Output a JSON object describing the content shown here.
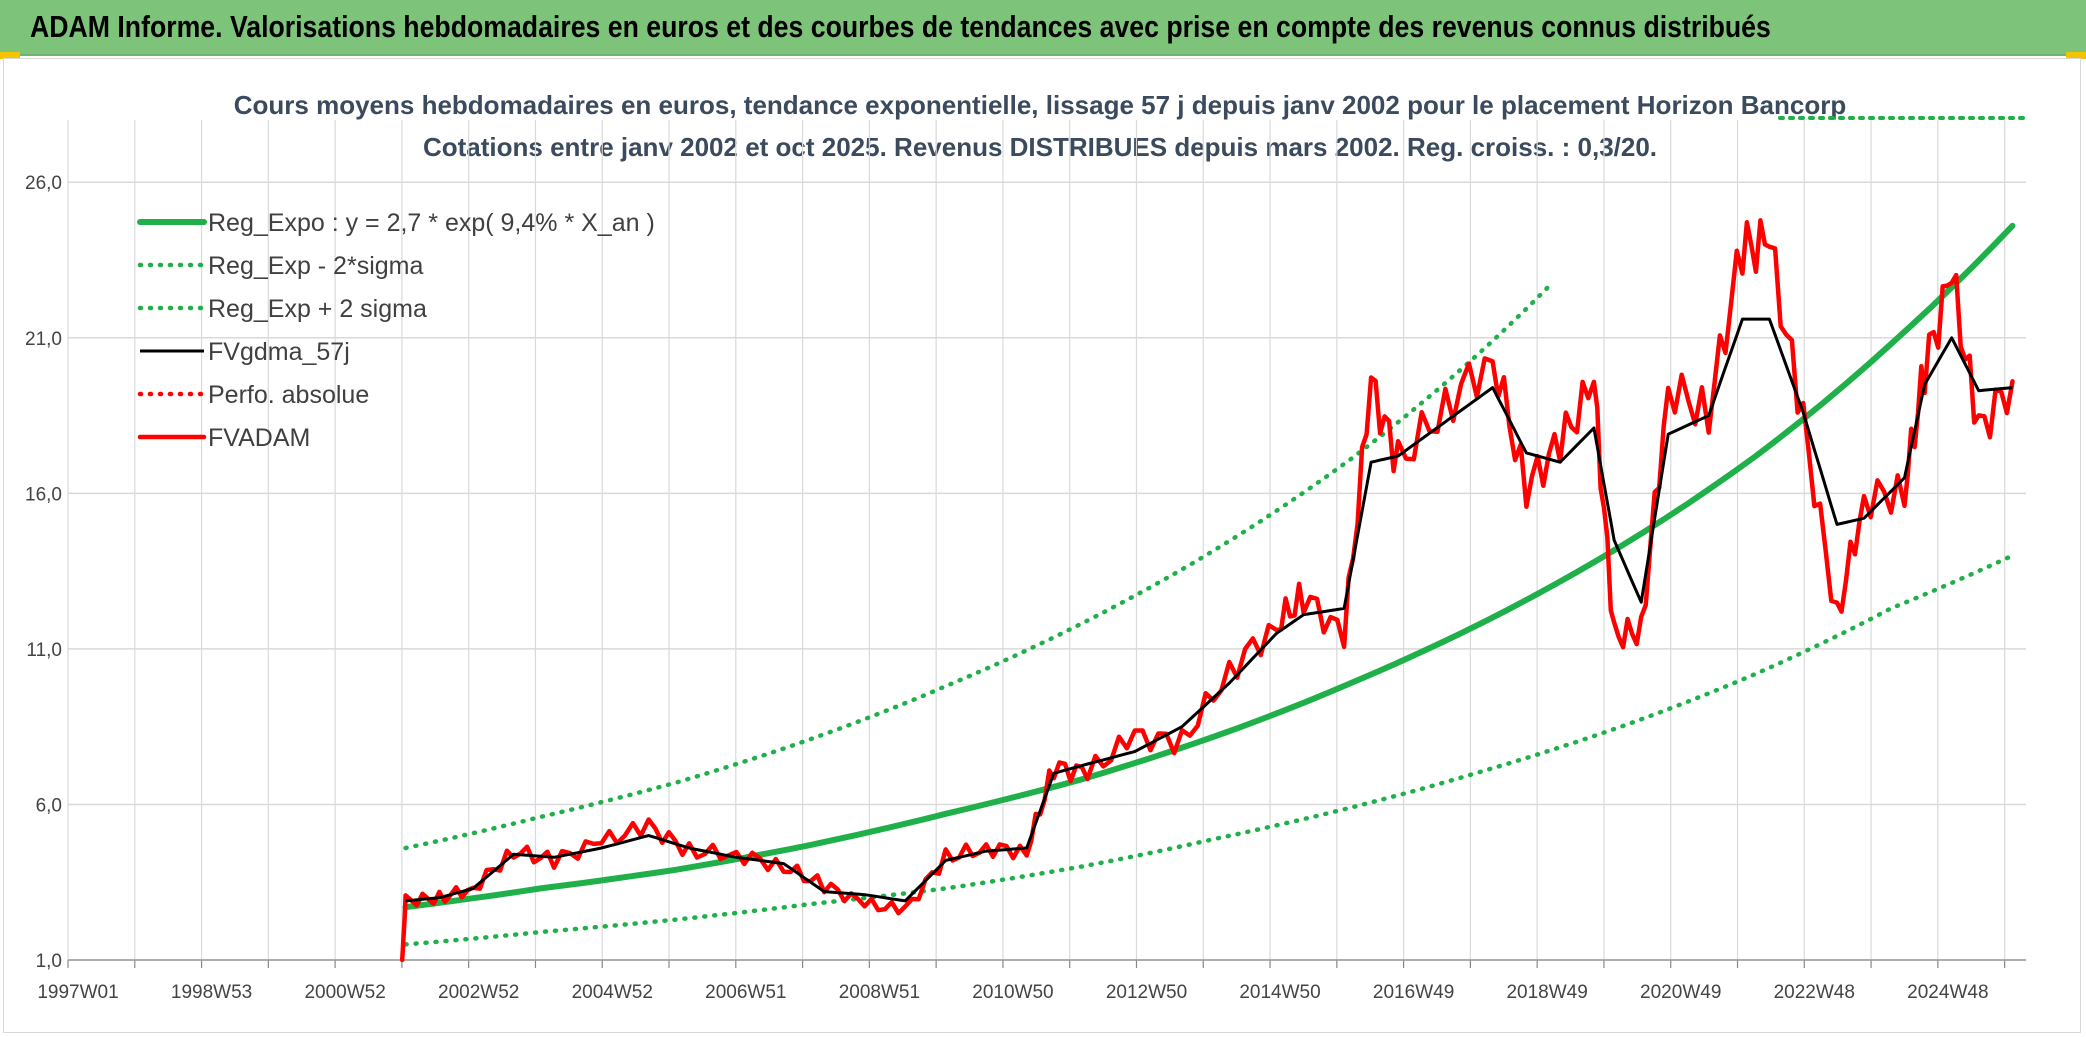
{
  "header": {
    "title": "ADAM Informe. Valorisations hebdomadaires en euros et des courbes de tendances avec prise en compte des revenus connus distribués"
  },
  "colors": {
    "banner": "#7dc47a",
    "green": "#1fb04a",
    "black": "#000000",
    "red": "#ff0000",
    "grid": "#d9d9d9"
  },
  "chart_data": {
    "type": "line",
    "title": "Cours moyens hebdomadaires en euros, tendance exponentielle, lissage 57 j depuis janv 2002 pour le placement Horizon Bancorp",
    "subtitle": "Cotations entre janv 2002 et oct 2025. Revenus DISTRIBUES depuis mars 2002. Reg. croiss. : 0,3/20.",
    "xlabel": "",
    "ylabel": "",
    "x_ticks": [
      "1997W01",
      "1998W53",
      "2000W52",
      "2002W52",
      "2004W52",
      "2006W51",
      "2008W51",
      "2010W50",
      "2012W50",
      "2014W50",
      "2016W49",
      "2018W49",
      "2020W49",
      "2022W48",
      "2024W48"
    ],
    "y_ticks": [
      "1,0",
      "6,0",
      "11,0",
      "16,0",
      "21,0",
      "26,0"
    ],
    "xlim": [
      1997.0,
      2026.0
    ],
    "ylim": [
      1.0,
      28.0
    ],
    "legend_position": "top-left",
    "series": [
      {
        "name": "Reg_Expo : y = 2,7 * exp( 9,4% *  X_an )",
        "style": "solid-thick",
        "color": "#1fb04a",
        "x": [
          2002.0,
          2004.0,
          2006.0,
          2008.0,
          2010.0,
          2012.0,
          2014.0,
          2016.0,
          2018.0,
          2020.0,
          2022.0,
          2024.0,
          2025.8
        ],
        "values": [
          2.7,
          3.3,
          3.9,
          4.7,
          5.7,
          6.8,
          8.2,
          9.9,
          11.9,
          14.3,
          17.2,
          20.8,
          24.6
        ]
      },
      {
        "name": "Reg_Exp - 2*sigma",
        "style": "dotted",
        "color": "#1fb04a",
        "x": [
          2002.0,
          2004.0,
          2006.0,
          2008.0,
          2010.0,
          2012.0,
          2014.0,
          2016.0,
          2018.0,
          2020.0,
          2022.0,
          2024.0,
          2025.8
        ],
        "values": [
          1.5,
          1.9,
          2.3,
          2.8,
          3.3,
          4.0,
          4.9,
          5.9,
          7.1,
          8.5,
          10.2,
          12.3,
          14.0
        ]
      },
      {
        "name": "Reg_Exp + 2 sigma",
        "style": "dotted",
        "color": "#1fb04a",
        "x": [
          2002.0,
          2004.0,
          2006.0,
          2008.0,
          2010.0,
          2012.0,
          2014.0,
          2016.0,
          2018.0,
          2019.0
        ],
        "values": [
          4.6,
          5.6,
          6.7,
          8.1,
          9.8,
          11.8,
          14.2,
          17.1,
          20.7,
          22.8
        ]
      },
      {
        "name": "FVgdma_57j",
        "style": "solid",
        "color": "#000000",
        "x": [
          2002.0,
          2002.5,
          2003.0,
          2003.6,
          2004.2,
          2004.9,
          2005.6,
          2006.2,
          2006.9,
          2007.6,
          2008.2,
          2008.8,
          2009.4,
          2010.0,
          2010.6,
          2011.2,
          2011.6,
          2012.1,
          2012.8,
          2013.5,
          2014.2,
          2014.9,
          2015.3,
          2015.9,
          2016.3,
          2016.7,
          2017.4,
          2018.1,
          2018.6,
          2019.1,
          2019.6,
          2019.9,
          2020.3,
          2020.7,
          2021.3,
          2021.8,
          2022.2,
          2022.7,
          2023.2,
          2023.6,
          2024.2,
          2024.5,
          2024.9,
          2025.3,
          2025.8
        ],
        "values": [
          2.9,
          3.0,
          3.3,
          4.4,
          4.3,
          4.6,
          5.0,
          4.6,
          4.3,
          4.1,
          3.2,
          3.1,
          2.9,
          4.2,
          4.5,
          4.6,
          7.0,
          7.3,
          7.7,
          8.5,
          9.9,
          11.5,
          12.1,
          12.3,
          17.0,
          17.2,
          18.3,
          19.4,
          17.3,
          17.0,
          18.1,
          14.5,
          12.5,
          17.9,
          18.5,
          21.6,
          21.6,
          18.6,
          15.0,
          15.2,
          16.5,
          19.5,
          21.0,
          19.3,
          19.4
        ]
      },
      {
        "name": "Perfo. absolue",
        "style": "dotted",
        "color": "#ff0000",
        "x": [],
        "values": []
      },
      {
        "name": "FVADAM",
        "style": "solid-thick",
        "color": "#ff0000",
        "x": [
          2001.95,
          2002.0,
          2002.5,
          2003.0,
          2003.6,
          2004.2,
          2004.9,
          2005.6,
          2006.2,
          2006.9,
          2007.6,
          2008.2,
          2008.8,
          2009.4,
          2010.0,
          2010.6,
          2011.2,
          2011.6,
          2012.1,
          2012.8,
          2013.5,
          2014.2,
          2014.9,
          2015.3,
          2015.9,
          2016.3,
          2016.7,
          2017.4,
          2018.1,
          2018.6,
          2019.1,
          2019.6,
          2019.9,
          2020.3,
          2020.7,
          2021.3,
          2021.8,
          2022.2,
          2022.7,
          2023.2,
          2023.6,
          2024.2,
          2024.5,
          2024.9,
          2025.3,
          2025.8
        ],
        "values": [
          1.0,
          2.9,
          3.0,
          3.3,
          4.5,
          4.2,
          4.8,
          5.3,
          4.5,
          4.4,
          4.0,
          3.4,
          2.8,
          2.6,
          4.3,
          4.6,
          4.5,
          7.2,
          7.0,
          8.2,
          8.0,
          10.3,
          11.8,
          12.7,
          11.4,
          19.5,
          17.0,
          18.8,
          20.4,
          16.2,
          17.6,
          19.5,
          11.4,
          11.6,
          19.4,
          18.6,
          23.9,
          24.0,
          18.3,
          12.0,
          15.8,
          16.1,
          20.0,
          23.0,
          18.0,
          19.6
        ]
      }
    ]
  }
}
